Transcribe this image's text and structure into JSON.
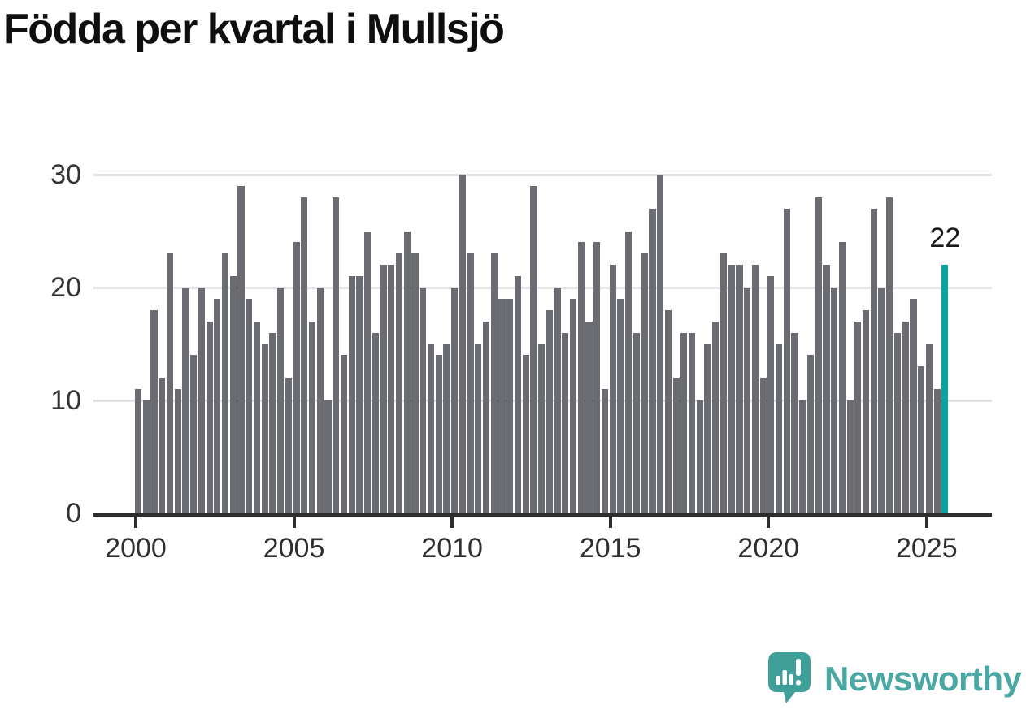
{
  "title": "Födda per kvartal i Mullsjö",
  "chart_data": {
    "type": "bar",
    "title": "Födda per kvartal i Mullsjö",
    "x_start": "2000-Q1",
    "x_end": "2025-Q3",
    "frequency": "quarterly",
    "values": [
      11,
      10,
      18,
      12,
      23,
      11,
      20,
      14,
      20,
      17,
      19,
      23,
      21,
      29,
      19,
      17,
      15,
      16,
      20,
      12,
      24,
      28,
      17,
      20,
      10,
      28,
      14,
      21,
      21,
      25,
      16,
      22,
      22,
      23,
      25,
      23,
      20,
      15,
      14,
      15,
      20,
      30,
      23,
      15,
      17,
      23,
      19,
      19,
      21,
      14,
      29,
      15,
      18,
      20,
      16,
      19,
      24,
      17,
      24,
      11,
      22,
      19,
      25,
      16,
      23,
      27,
      30,
      18,
      12,
      16,
      16,
      10,
      15,
      17,
      23,
      22,
      22,
      20,
      22,
      12,
      21,
      15,
      27,
      16,
      10,
      14,
      28,
      22,
      20,
      24,
      10,
      17,
      18,
      27,
      20,
      28,
      16,
      17,
      19,
      13,
      15,
      11,
      22
    ],
    "x_tick_labels": [
      "2000",
      "2005",
      "2010",
      "2015",
      "2020",
      "2025"
    ],
    "y_tick_labels": [
      "0",
      "10",
      "20",
      "30"
    ],
    "ylim": [
      0,
      30
    ],
    "grid": "horizontal",
    "legend": "none",
    "highlight": {
      "index": 102,
      "period": "2025-Q3",
      "label": "22"
    },
    "colors": {
      "bar": "#6b6b72",
      "highlight": "#09a3a2",
      "gridline": "#e2e2e2",
      "axis": "#2d2d30"
    }
  },
  "branding": {
    "logo_text": "Newsworthy",
    "logo_text_color": "#4BA7A2",
    "logo_bubble_color": "#3EA099"
  }
}
